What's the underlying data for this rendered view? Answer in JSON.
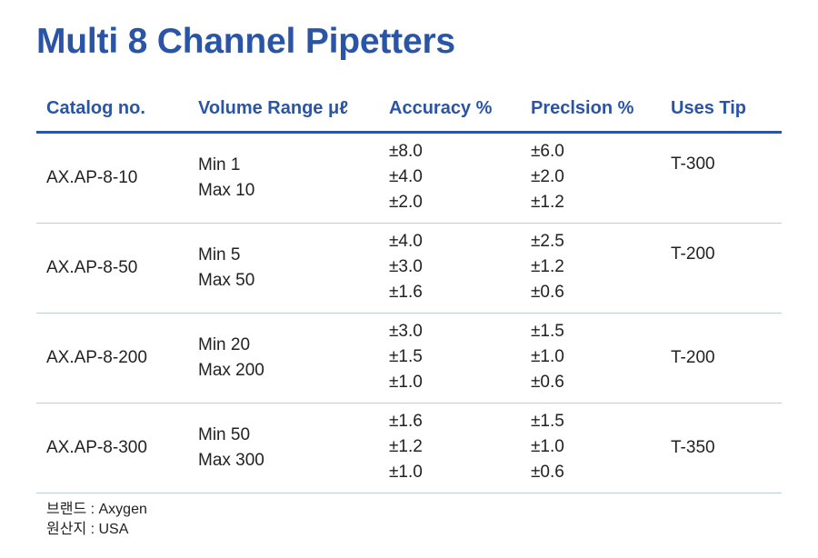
{
  "title": "Multi 8 Channel Pipetters",
  "headers": {
    "catalog": "Catalog no.",
    "volume": "Volume Range μℓ",
    "accuracy": "Accuracy %",
    "precision": "Preclsion %",
    "tip": "Uses Tip"
  },
  "rows": [
    {
      "catalog": "AX.AP-8-10",
      "vol_min": "Min 1",
      "vol_max": "Max 10",
      "accuracy": [
        "±8.0",
        "±4.0",
        "±2.0"
      ],
      "precision": [
        "±6.0",
        "±2.0",
        "±1.2"
      ],
      "tip": "T-300"
    },
    {
      "catalog": "AX.AP-8-50",
      "vol_min": "Min 5",
      "vol_max": "Max 50",
      "accuracy": [
        "±4.0",
        "±3.0",
        "±1.6"
      ],
      "precision": [
        "±2.5",
        "±1.2",
        "±0.6"
      ],
      "tip": "T-200"
    },
    {
      "catalog": "AX.AP-8-200",
      "vol_min": "Min 20",
      "vol_max": "Max 200",
      "accuracy": [
        "±3.0",
        "±1.5",
        "±1.0"
      ],
      "precision": [
        "±1.5",
        "±1.0",
        "±0.6"
      ],
      "tip": "T-200"
    },
    {
      "catalog": "AX.AP-8-300",
      "vol_min": "Min 50",
      "vol_max": "Max 300",
      "accuracy": [
        "±1.6",
        "±1.2",
        "±1.0"
      ],
      "precision": [
        "±1.5",
        "±1.0",
        "±0.6"
      ],
      "tip": "T-350"
    }
  ],
  "footer": {
    "brand": "브랜드 : Axygen",
    "origin": "원산지 : USA"
  },
  "colors": {
    "accent": "#2a55a7",
    "row_divider": "#b9cfdf"
  }
}
